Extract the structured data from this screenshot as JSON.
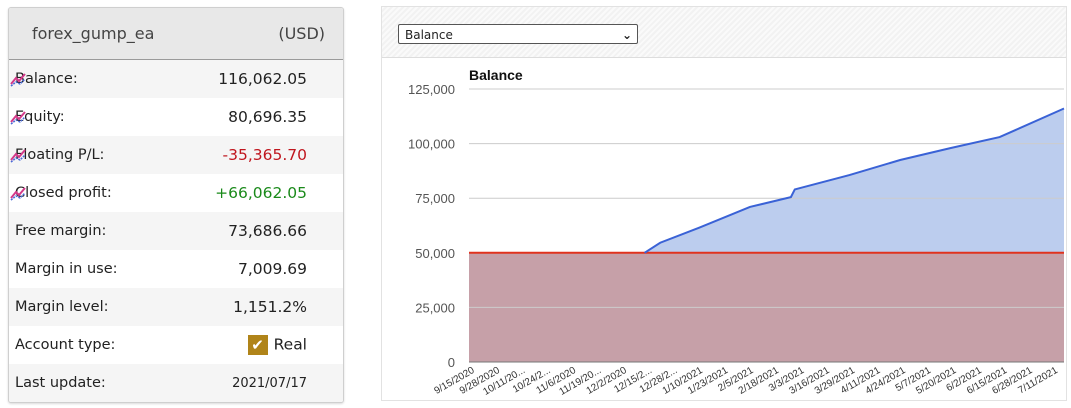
{
  "account": {
    "name": "forex_gump_ea",
    "currency": "(USD)",
    "rows": [
      {
        "label": "Balance:",
        "value": "116,062.05",
        "chart_icon": true
      },
      {
        "label": "Equity:",
        "value": "80,696.35",
        "chart_icon": true
      },
      {
        "label": "Floating P/L:",
        "value": "-35,365.70",
        "chart_icon": true,
        "tone": "neg"
      },
      {
        "label": "Closed profit:",
        "value": "+66,062.05",
        "chart_icon": true,
        "tone": "pos"
      },
      {
        "label": "Free margin:",
        "value": "73,686.66"
      },
      {
        "label": "Margin in use:",
        "value": "7,009.69"
      },
      {
        "label": "Margin level:",
        "value": "1,151.2%"
      },
      {
        "label": "Account type:",
        "value": "Real",
        "checkbox": true
      },
      {
        "label": "Last update:",
        "value": "2021/07/17",
        "small": true
      }
    ],
    "icon": "line-chart-icon"
  },
  "chart_selector": {
    "selected": "Balance"
  },
  "colors": {
    "neg": "#c0161e",
    "pos": "#1a8a1a",
    "line": "#3a62d6",
    "area": "#bccdee",
    "base_area": "#c6a0a8",
    "ref_line": "#e0321e",
    "checkbox": "#b08419"
  },
  "chart_data": {
    "type": "area",
    "title": "Balance",
    "xlabel": "",
    "ylabel": "",
    "ylim": [
      0,
      125000
    ],
    "yticks": [
      0,
      25000,
      50000,
      75000,
      100000,
      125000
    ],
    "ytick_labels": [
      "0",
      "25,000",
      "50,000",
      "75,000",
      "100,000",
      "125,000"
    ],
    "xlim": [
      "2020-09-15",
      "2021-07-17"
    ],
    "xtick_dates": [
      "2020-09-15",
      "2020-09-28",
      "2020-10-11",
      "2020-10-24",
      "2020-11-06",
      "2020-11-19",
      "2020-12-02",
      "2020-12-15",
      "2020-12-28",
      "2021-01-10",
      "2021-01-23",
      "2021-02-05",
      "2021-02-18",
      "2021-03-03",
      "2021-03-16",
      "2021-03-29",
      "2021-04-11",
      "2021-04-24",
      "2021-05-07",
      "2021-05-20",
      "2021-06-02",
      "2021-06-15",
      "2021-06-28",
      "2021-07-11"
    ],
    "xtick_labels": [
      "9/15/2020",
      "9/28/2020",
      "10/11/20...",
      "10/24/2...",
      "11/6/2020",
      "11/19/20...",
      "12/2/2020",
      "12/15/2...",
      "12/28/2...",
      "1/10/2021",
      "1/23/2021",
      "2/5/2021",
      "2/18/2021",
      "3/3/2021",
      "3/16/2021",
      "3/29/2021",
      "4/11/2021",
      "4/24/2021",
      "5/7/2021",
      "5/20/2021",
      "6/2/2021",
      "6/15/2021",
      "6/28/2021",
      "7/11/2021"
    ],
    "grid": true,
    "reference_line": 50000,
    "series": [
      {
        "x": [
          "2020-09-15",
          "2020-12-14",
          "2020-12-22",
          "2021-01-11",
          "2021-02-06",
          "2021-02-27",
          "2021-03-01",
          "2021-03-29",
          "2021-04-24",
          "2021-05-20",
          "2021-06-14",
          "2021-07-17"
        ],
        "y": [
          50000,
          50000,
          54600,
          61500,
          71000,
          75500,
          79000,
          85600,
          92500,
          98000,
          103000,
          116062
        ]
      }
    ]
  }
}
